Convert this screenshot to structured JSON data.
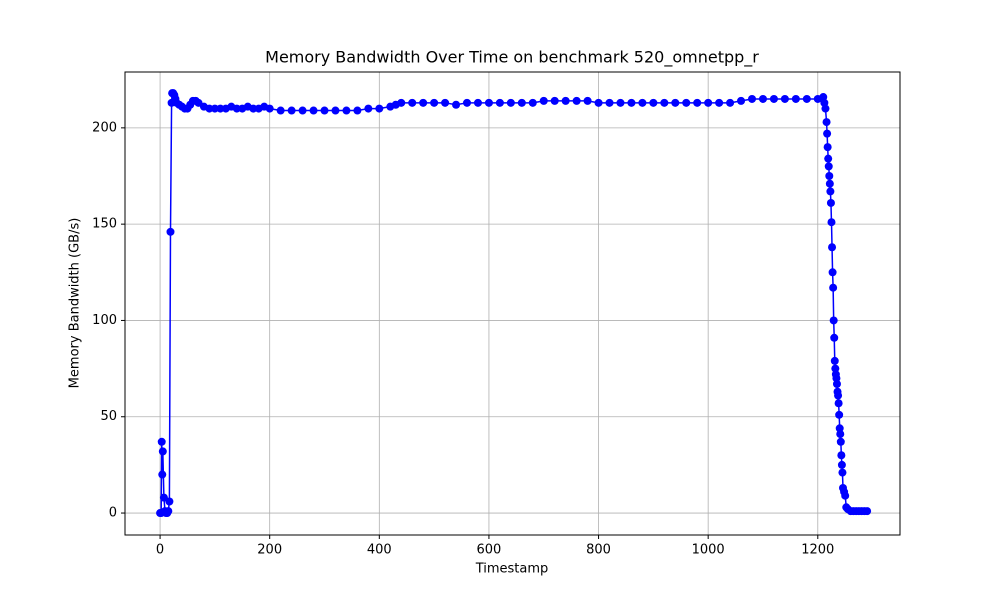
{
  "chart_data": {
    "type": "line",
    "title": "Memory Bandwidth Over Time on benchmark 520_omnetpp_r",
    "x_label": "Timestamp",
    "y_label": "Memory Bandwidth (GB/s)",
    "x": [
      0,
      2,
      3,
      4,
      5,
      7,
      9,
      11,
      13,
      15,
      17,
      19,
      21,
      22,
      24,
      26,
      28,
      30,
      35,
      40,
      45,
      50,
      55,
      60,
      65,
      70,
      80,
      90,
      100,
      110,
      120,
      130,
      140,
      150,
      160,
      170,
      180,
      190,
      200,
      220,
      240,
      260,
      280,
      300,
      320,
      340,
      360,
      380,
      400,
      420,
      430,
      440,
      460,
      480,
      500,
      520,
      540,
      560,
      580,
      600,
      620,
      640,
      660,
      680,
      700,
      720,
      740,
      760,
      780,
      800,
      820,
      840,
      860,
      880,
      900,
      920,
      940,
      960,
      980,
      1000,
      1020,
      1040,
      1060,
      1080,
      1100,
      1120,
      1140,
      1160,
      1180,
      1200,
      1210,
      1212,
      1214,
      1216,
      1217,
      1218,
      1219,
      1220,
      1221,
      1222,
      1223,
      1224,
      1225,
      1226,
      1227,
      1228,
      1229,
      1230,
      1231,
      1232,
      1233,
      1234,
      1235,
      1236,
      1237,
      1238,
      1239,
      1240,
      1241,
      1242,
      1243,
      1244,
      1245,
      1246,
      1248,
      1250,
      1252,
      1255,
      1260,
      1265,
      1270,
      1275,
      1280,
      1285,
      1290
    ],
    "series": [
      {
        "color": "#0000ff",
        "values": [
          0,
          0,
          37,
          20,
          32,
          8,
          1,
          0,
          0,
          1,
          6,
          146,
          213,
          218,
          218,
          217,
          215,
          213,
          212,
          211,
          210,
          210,
          212,
          214,
          214,
          213,
          211,
          210,
          210,
          210,
          210,
          211,
          210,
          210,
          211,
          210,
          210,
          211,
          210,
          209,
          209,
          209,
          209,
          209,
          209,
          209,
          209,
          210,
          210,
          211,
          212,
          213,
          213,
          213,
          213,
          213,
          212,
          213,
          213,
          213,
          213,
          213,
          213,
          213,
          214,
          214,
          214,
          214,
          214,
          213,
          213,
          213,
          213,
          213,
          213,
          213,
          213,
          213,
          213,
          213,
          213,
          213,
          214,
          215,
          215,
          215,
          215,
          215,
          215,
          215,
          216,
          213,
          210,
          203,
          197,
          190,
          184,
          180,
          175,
          171,
          167,
          161,
          151,
          138,
          125,
          117,
          100,
          91,
          79,
          75,
          72,
          70,
          67,
          63,
          61,
          57,
          51,
          44,
          41,
          37,
          30,
          25,
          21,
          13,
          11,
          9,
          3,
          2,
          1,
          1,
          1,
          1,
          1,
          1,
          1
        ]
      }
    ],
    "xlim": [
      -64,
      1350
    ],
    "ylim": [
      -11.4,
      229
    ],
    "xticks": [
      0,
      200,
      400,
      600,
      800,
      1000,
      1200
    ],
    "yticks": [
      0,
      50,
      100,
      150,
      200
    ],
    "grid": true
  }
}
